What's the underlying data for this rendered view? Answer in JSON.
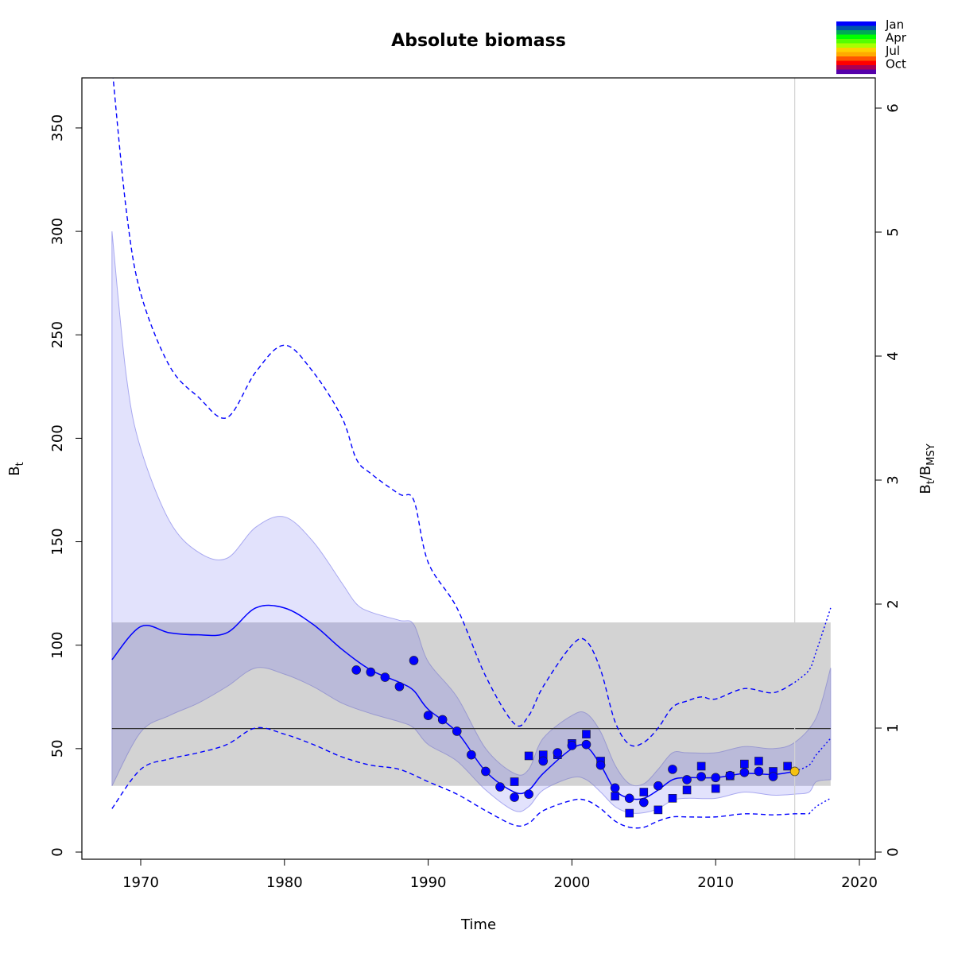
{
  "chart_data": {
    "type": "line",
    "title": "Absolute biomass",
    "xlabel": "Time",
    "ylabel": "B_t",
    "ylabel_main": "B",
    "ylabel_sub": "t",
    "y2label_parts": [
      "B",
      "t",
      "/B",
      "MSY"
    ],
    "xlim": [
      1966,
      2021
    ],
    "ylim": [
      -3.5,
      374
    ],
    "y2ticks": [
      "0",
      "1",
      "2",
      "3",
      "4",
      "5",
      "6"
    ],
    "xticks": [
      "1970",
      "1980",
      "1990",
      "2000",
      "2010",
      "2020"
    ],
    "yticks": [
      "0",
      "50",
      "100",
      "150",
      "200",
      "250",
      "300",
      "350"
    ],
    "bmsy": 59.7,
    "bmsy_ci": [
      32,
      111
    ],
    "current_time": 2015.5,
    "legend": {
      "labels": [
        "Jan",
        "Apr",
        "Jul",
        "Oct"
      ],
      "colors": [
        "#0000ff",
        "#0055aa",
        "#00aa55",
        "#00ff00",
        "#55ff00",
        "#aaff00",
        "#ffd000",
        "#ffaa00",
        "#ff5500",
        "#ff0000",
        "#aa0055",
        "#5500aa"
      ],
      "placement": "top-right"
    },
    "colors": {
      "main": "#0000ff",
      "band": "#e2e2fc",
      "band_overlap": "#babad9",
      "gray": "#d3d3d3",
      "current": "#f5c211"
    },
    "estimate": {
      "x": [
        1968,
        1970,
        1972,
        1974,
        1976,
        1978,
        1980,
        1982,
        1984,
        1986,
        1988,
        1989,
        1990,
        1992,
        1994,
        1996,
        1997,
        1998,
        2000,
        2001,
        2002,
        2003,
        2004,
        2005,
        2006,
        2007,
        2008,
        2010,
        2012,
        2014,
        2015.5
      ],
      "y": [
        93,
        109,
        106,
        105,
        106,
        118,
        118,
        110,
        98,
        88,
        82,
        78,
        69,
        58,
        39,
        29,
        30,
        38,
        50,
        51,
        42,
        30,
        26,
        26,
        30,
        35,
        36,
        36,
        38,
        37.5,
        39
      ]
    },
    "forecast": {
      "x": [
        2015.5,
        2016.5,
        2017,
        2018
      ],
      "y": [
        39,
        42,
        47,
        55
      ]
    },
    "ci_upper": {
      "x": [
        1968,
        1969,
        1970,
        1972,
        1974,
        1976,
        1978,
        1980,
        1982,
        1984,
        1985,
        1986,
        1988,
        1989,
        1990,
        1992,
        1994,
        1996,
        1997,
        1998,
        2000,
        2001,
        2002,
        2003,
        2004,
        2005,
        2006,
        2007,
        2008,
        2010,
        2012,
        2014,
        2015.5,
        2017,
        2018
      ],
      "y": [
        300,
        230,
        195,
        160,
        145,
        142,
        157,
        162,
        150,
        130,
        120,
        116,
        112,
        110,
        92,
        75,
        50,
        38,
        40,
        55,
        66,
        67,
        58,
        42,
        33,
        33,
        40,
        48,
        48,
        48,
        51,
        50,
        53,
        65,
        89
      ]
    },
    "ci_lower": {
      "x": [
        1968,
        1970,
        1972,
        1974,
        1976,
        1978,
        1980,
        1982,
        1984,
        1986,
        1988,
        1989,
        1990,
        1992,
        1994,
        1996,
        1997,
        1998,
        2000,
        2001,
        2002,
        2003,
        2004,
        2005,
        2006,
        2007,
        2008,
        2010,
        2012,
        2014,
        2015.5,
        2016.5,
        2017,
        2018
      ],
      "y": [
        32,
        58,
        66,
        72,
        80,
        89,
        86,
        80,
        72,
        67,
        63,
        60,
        52,
        44,
        30,
        20,
        22,
        30,
        36,
        35,
        29,
        22,
        19,
        19,
        21,
        25,
        26,
        26,
        29,
        27.5,
        28,
        29,
        34,
        35
      ]
    },
    "ratio_ci_upper": {
      "x": [
        1968,
        1969,
        1970,
        1972,
        1974,
        1976,
        1978,
        1980,
        1982,
        1984,
        1985,
        1986,
        1988,
        1989,
        1990,
        1992,
        1994,
        1996,
        1997,
        1998,
        2000,
        2001,
        2002,
        2003,
        2004,
        2005,
        2006,
        2007,
        2008,
        2009,
        2010,
        2012,
        2014,
        2015.5
      ],
      "y": [
        380,
        310,
        270,
        235,
        220,
        210,
        232,
        245,
        232,
        210,
        190,
        183,
        173,
        170,
        140,
        118,
        85,
        62,
        66,
        80,
        100,
        102,
        88,
        63,
        52,
        53,
        60,
        70,
        73,
        75,
        74,
        79,
        77,
        82
      ]
    },
    "ratio_ci_upper_forecast": {
      "x": [
        2015.5,
        2016.5,
        2017,
        2018
      ],
      "y": [
        82,
        88,
        97,
        118
      ]
    },
    "ratio_ci_lower": {
      "x": [
        1968,
        1970,
        1972,
        1974,
        1976,
        1978,
        1980,
        1982,
        1984,
        1986,
        1988,
        1990,
        1992,
        1994,
        1996,
        1997,
        1998,
        2000,
        2001,
        2002,
        2003,
        2004,
        2005,
        2006,
        2007,
        2008,
        2010,
        2012,
        2014,
        2015.5,
        2016.5
      ],
      "y": [
        21,
        40,
        45,
        48,
        52,
        60,
        57,
        52,
        46,
        42,
        40,
        34,
        28,
        20,
        13,
        14,
        20,
        25,
        25,
        21,
        15,
        12,
        12,
        15,
        17,
        17,
        17,
        18.5,
        18,
        18.5,
        18.5
      ]
    },
    "ratio_ci_lower_forecast": {
      "x": [
        2016.5,
        2017,
        2018
      ],
      "y": [
        18.5,
        22,
        26
      ]
    },
    "index1": {
      "x": [
        1985,
        1986,
        1987,
        1988,
        1989,
        1990,
        1991,
        1992,
        1993,
        1994,
        1995,
        1996,
        1997,
        1998,
        1999,
        2000,
        2001,
        2002,
        2003,
        2004,
        2005,
        2006,
        2007,
        2008,
        2009,
        2010,
        2011,
        2012,
        2013,
        2014
      ],
      "y": [
        88,
        87,
        84.5,
        80,
        92.6,
        66,
        64,
        58.4,
        47,
        39,
        31.5,
        26.5,
        28,
        44,
        48,
        51.5,
        52,
        42,
        31,
        26,
        24,
        32,
        40,
        35,
        36.5,
        36,
        37,
        38.5,
        39,
        36.5
      ]
    },
    "index1_current": {
      "x": 2015.5,
      "y": 39
    },
    "index2": {
      "x": [
        1996,
        1997,
        1998,
        1999,
        2000,
        2001,
        2002,
        2003,
        2004,
        2005,
        2006,
        2007,
        2008,
        2009,
        2010,
        2011,
        2012,
        2013,
        2014,
        2015
      ],
      "y": [
        34,
        46.5,
        47,
        47,
        52.5,
        57,
        44,
        27,
        18.8,
        29,
        20.4,
        26,
        30,
        41.5,
        30.7,
        36.8,
        42.6,
        44,
        39,
        41.5
      ]
    }
  }
}
